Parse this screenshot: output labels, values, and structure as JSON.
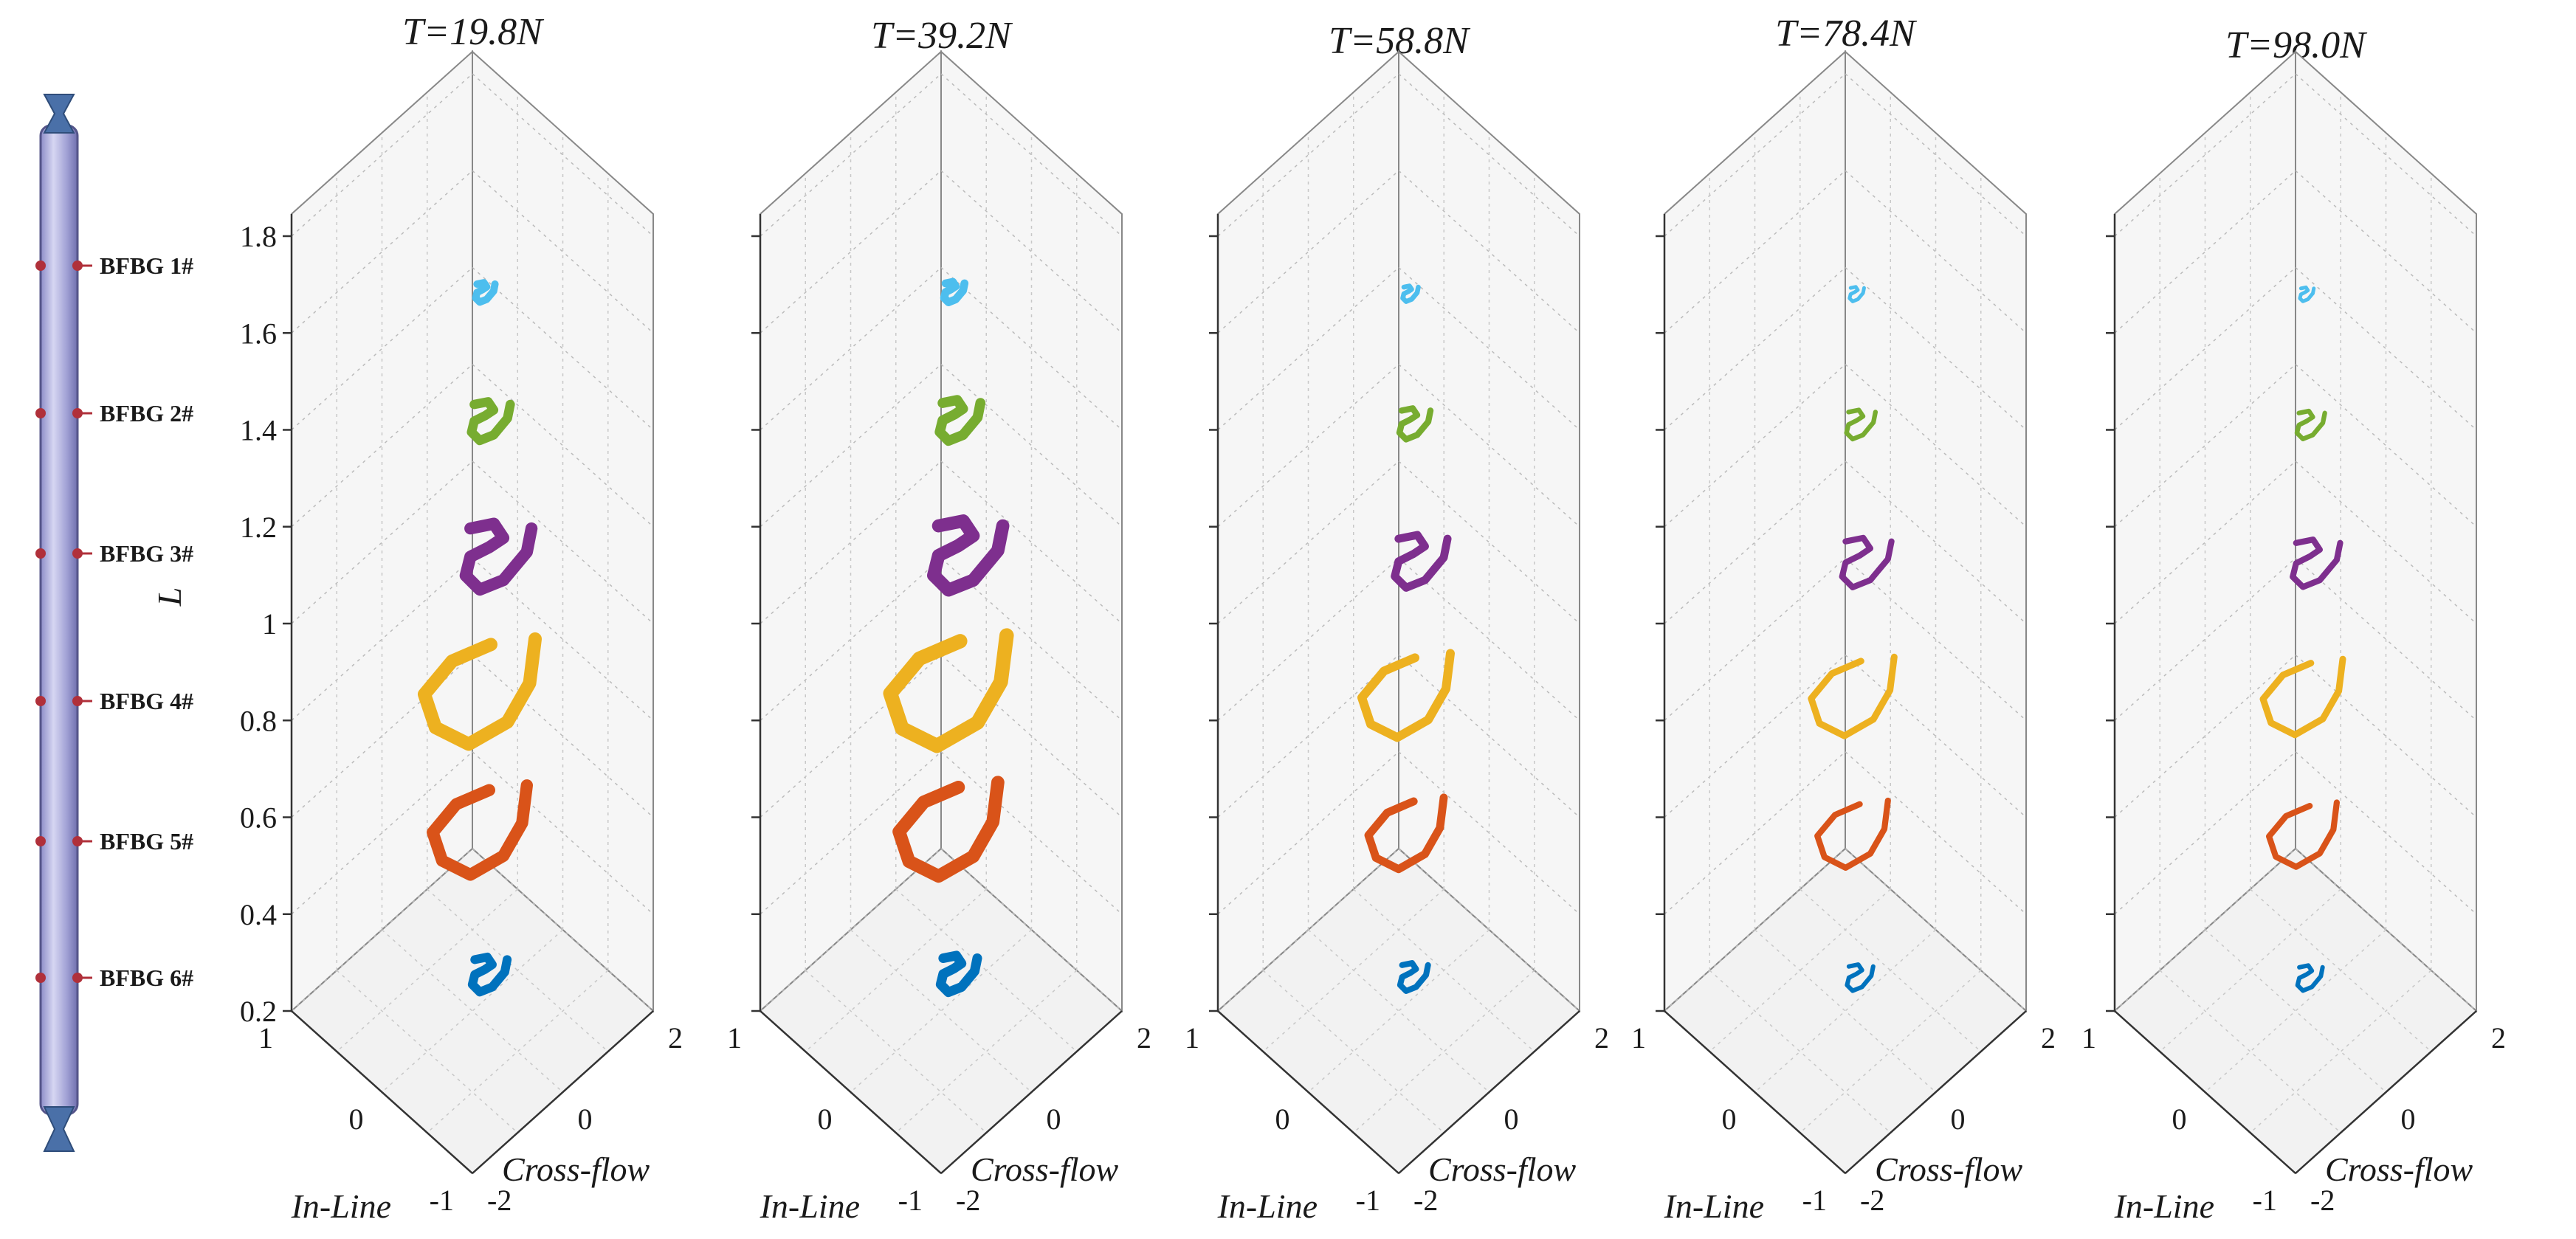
{
  "chart_data": {
    "type": "scatter",
    "description_type": "3d-trajectory",
    "panels": [
      {
        "title": "T=19.8N",
        "shape_scale": 1.0,
        "thickness": 12
      },
      {
        "title": "T=39.2N",
        "shape_scale": 1.05,
        "thickness": 13
      },
      {
        "title": "T=58.8N",
        "shape_scale": 0.8,
        "thickness": 8
      },
      {
        "title": "T=78.4N",
        "shape_scale": 0.75,
        "thickness": 6
      },
      {
        "title": "T=98.0N",
        "shape_scale": 0.72,
        "thickness": 6
      }
    ],
    "z_axis": {
      "label": "L",
      "ticks": [
        "0.2",
        "0.4",
        "0.6",
        "0.8",
        "1",
        "1.2",
        "1.4",
        "1.6",
        "1.8"
      ],
      "range": [
        0.2,
        1.8
      ]
    },
    "x_axis": {
      "label": "In-Line",
      "ticks": [
        "1",
        "0",
        "-1"
      ],
      "range": [
        -1,
        1
      ]
    },
    "y_axis": {
      "label": "Cross-flow",
      "ticks": [
        "-2",
        "0",
        "2"
      ],
      "range": [
        -2,
        2
      ]
    },
    "series": [
      {
        "name": "BFBG 1#",
        "z": 1.7,
        "color": "#4DBEEE",
        "size": 0.25
      },
      {
        "name": "BFBG 2#",
        "z": 1.42,
        "color": "#77AC30",
        "size": 0.5
      },
      {
        "name": "BFBG 3#",
        "z": 1.12,
        "color": "#7E2F8E",
        "size": 0.85
      },
      {
        "name": "BFBG 4#",
        "z": 0.85,
        "color": "#EDB120",
        "size": 1.0
      },
      {
        "name": "BFBG 5#",
        "z": 0.57,
        "color": "#D95319",
        "size": 0.85
      },
      {
        "name": "BFBG 6#",
        "z": 0.28,
        "color": "#0072BD",
        "size": 0.45
      }
    ]
  },
  "riser": {
    "sensor_labels": [
      "BFBG 1#",
      "BFBG 2#",
      "BFBG 3#",
      "BFBG 4#",
      "BFBG 5#",
      "BFBG 6#"
    ]
  }
}
